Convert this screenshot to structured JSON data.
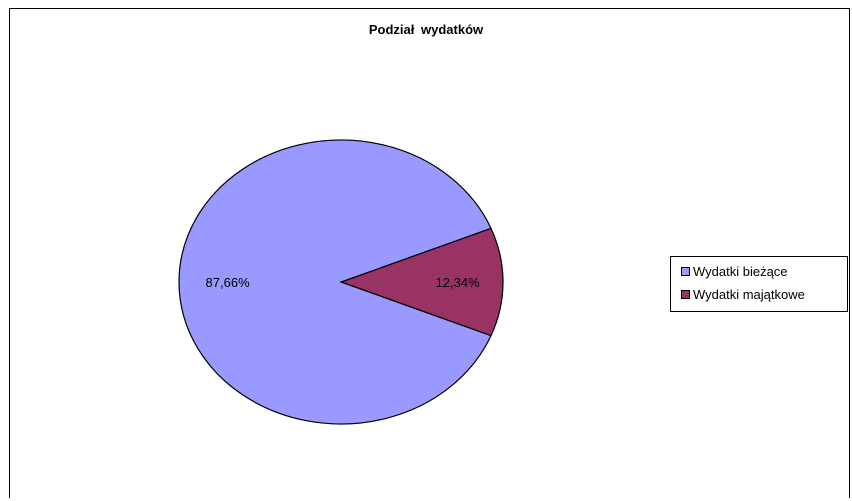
{
  "chart_data": {
    "type": "pie",
    "title": "Podział  wydatków",
    "categories": [
      "Wydatki bieżące",
      "Wydatki majątkowe"
    ],
    "values": [
      87.66,
      12.34
    ],
    "labels": [
      "87,66%",
      "12,34%"
    ],
    "colors": [
      "#9999ff",
      "#993366"
    ],
    "legend_position": "right"
  }
}
